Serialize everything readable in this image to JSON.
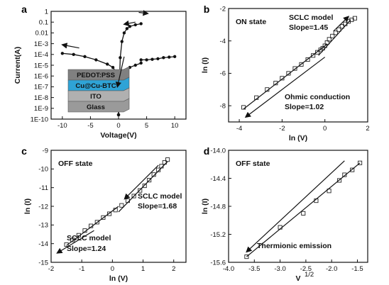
{
  "chart_data": [
    {
      "panel": "a",
      "type": "line",
      "xlabel": "Voltage(V)",
      "ylabel": "Current(A)",
      "xlim": [
        -12,
        12
      ],
      "ylim_log10": [
        -10,
        0
      ],
      "x_ticks": [
        "-10",
        "-5",
        "0",
        "5",
        "10"
      ],
      "y_ticks": [
        "1E-10",
        "1E-9",
        "1E-8",
        "1E-7",
        "1E-6",
        "1E-5",
        "1E-4",
        "1E-3",
        "0.01",
        "0.1",
        "1"
      ],
      "scale_y": "log",
      "series": [
        {
          "x": [
            -10,
            -8,
            -6,
            -4,
            -2,
            -1,
            -0.5,
            -0.2,
            0
          ],
          "y_log10": [
            -3.9,
            -4.0,
            -4.2,
            -4.5,
            -4.9,
            -5.2,
            -5.6,
            -6.2,
            -9.6
          ]
        },
        {
          "x": [
            0,
            0.3,
            0.6,
            1,
            1.5,
            2,
            3,
            4
          ],
          "y_log10": [
            -9.6,
            -4.3,
            -2.8,
            -2.0,
            -1.6,
            -1.4,
            -1.25,
            -1.15
          ]
        },
        {
          "x": [
            4,
            5,
            6,
            7,
            8,
            9,
            10
          ],
          "y_log10": [
            -4.5,
            -4.5,
            -4.45,
            -4.4,
            -4.3,
            -4.25,
            -4.2
          ]
        },
        {
          "x": [
            0,
            0.5,
            1,
            2,
            3,
            4
          ],
          "y_log10": [
            -9.6,
            -5.8,
            -5.5,
            -5.2,
            -5.0,
            -4.8
          ]
        }
      ],
      "arrows_data": [
        {
          "from": [
            -7,
            -3.4
          ],
          "to": [
            -10,
            -3.1
          ]
        },
        {
          "from": [
            3.0,
            -1.0
          ],
          "to": [
            1.0,
            -1.2
          ]
        },
        {
          "from": [
            3.6,
            -0.1
          ],
          "to": [
            5.2,
            -0.2
          ]
        },
        {
          "from": [
            1.0,
            -4.2
          ],
          "to": [
            -0.2,
            -7.0
          ]
        }
      ],
      "inset": {
        "layers": [
          "PEDOT:PSS",
          "Cu@Cu-BTC",
          "ITO",
          "Glass"
        ],
        "colors": [
          "#808080",
          "#2fa3d6",
          "#b0b0b0",
          "#9a9a9a"
        ]
      }
    },
    {
      "panel": "b",
      "type": "scatter",
      "xlabel": "ln (V)",
      "ylabel": "ln (I)",
      "xlim": [
        -4.5,
        2.0
      ],
      "ylim": [
        -9,
        -2
      ],
      "x_ticks": [
        "-4",
        "-2",
        "0",
        "2"
      ],
      "y_ticks": [
        "-8",
        "-6",
        "-4",
        "-2"
      ],
      "state": "ON state",
      "annotations": [
        "SCLC model",
        "Slope=1.45",
        "Ohmic conduction",
        "Slope=1.02"
      ],
      "x": [
        -3.8,
        -3.2,
        -2.7,
        -2.3,
        -2.0,
        -1.7,
        -1.4,
        -1.1,
        -0.8,
        -0.55,
        -0.35,
        -0.2,
        -0.1,
        0.0,
        0.1,
        0.2,
        0.35,
        0.5,
        0.65,
        0.8,
        0.95,
        1.1,
        1.25,
        1.4
      ],
      "y": [
        -8.1,
        -7.5,
        -7.0,
        -6.6,
        -6.3,
        -6.0,
        -5.7,
        -5.45,
        -5.15,
        -4.9,
        -4.7,
        -4.55,
        -4.45,
        -4.3,
        -4.1,
        -3.9,
        -3.7,
        -3.5,
        -3.3,
        -3.1,
        -2.95,
        -2.8,
        -2.7,
        -2.6
      ],
      "fit_lines": [
        {
          "x": [
            -3.8,
            0.1
          ],
          "y": [
            -8.2,
            -4.2
          ]
        },
        {
          "x": [
            -0.3,
            1.2
          ],
          "y": [
            -4.9,
            -2.7
          ]
        }
      ],
      "arrows_data": [
        {
          "from": [
            0.4,
            -3.4
          ],
          "to": [
            1.1,
            -2.5
          ]
        },
        {
          "from": [
            0.0,
            -5.0
          ],
          "to": [
            -3.7,
            -8.7
          ]
        }
      ]
    },
    {
      "panel": "c",
      "type": "scatter",
      "xlabel": "ln (V)",
      "ylabel": "ln (I)",
      "xlim": [
        -2,
        2.4
      ],
      "ylim": [
        -15,
        -9
      ],
      "x_ticks": [
        "-2",
        "-1",
        "0",
        "1",
        "2"
      ],
      "y_ticks": [
        "-15",
        "-14",
        "-13",
        "-12",
        "-11",
        "-10",
        "-9"
      ],
      "state": "OFF state",
      "annotations": [
        "SCLC model",
        "Slope=1.68",
        "SCLC model",
        "Slope=1.24"
      ],
      "x": [
        -1.5,
        -1.3,
        -1.1,
        -0.9,
        -0.7,
        -0.5,
        -0.3,
        -0.1,
        0.1,
        0.3,
        0.5,
        0.7,
        0.9,
        1.05,
        1.2,
        1.35,
        1.5,
        1.6,
        1.7,
        1.8
      ],
      "y": [
        -14.05,
        -13.8,
        -13.55,
        -13.3,
        -13.05,
        -12.85,
        -12.6,
        -12.4,
        -12.2,
        -11.95,
        -11.7,
        -11.45,
        -11.15,
        -10.9,
        -10.6,
        -10.3,
        -10.05,
        -9.85,
        -9.65,
        -9.5
      ],
      "fit_lines": [
        {
          "x": [
            -1.5,
            0.2
          ],
          "y": [
            -14.1,
            -12.0
          ]
        },
        {
          "x": [
            0.2,
            1.8
          ],
          "y": [
            -12.3,
            -9.6
          ]
        }
      ],
      "arrows_data": [
        {
          "from": [
            1.5,
            -9.8
          ],
          "to": [
            0.4,
            -11.6
          ]
        },
        {
          "from": [
            -0.6,
            -13.3
          ],
          "to": [
            -1.8,
            -14.5
          ]
        }
      ]
    },
    {
      "panel": "d",
      "type": "scatter",
      "xlabel": "V",
      "xlabel_sup": "1/2",
      "ylabel": "ln (I)",
      "xlim": [
        -4.0,
        -1.3
      ],
      "ylim": [
        -15.6,
        -14.0
      ],
      "x_ticks": [
        "-4.0",
        "-3.5",
        "-3.0",
        "-2.5",
        "-2.0",
        "-1.5"
      ],
      "y_ticks": [
        "-15.6",
        "-15.2",
        "-14.8",
        "-14.4",
        "-14.0"
      ],
      "state": "OFF state",
      "annotations": [
        "Thermionic emission"
      ],
      "x": [
        -3.65,
        -3.0,
        -2.55,
        -2.3,
        -2.05,
        -1.85,
        -1.75,
        -1.6,
        -1.45
      ],
      "y": [
        -15.52,
        -15.1,
        -14.9,
        -14.72,
        -14.58,
        -14.43,
        -14.35,
        -14.28,
        -14.18
      ],
      "fit_lines": [
        {
          "x": [
            -3.65,
            -1.45
          ],
          "y": [
            -15.52,
            -14.18
          ]
        }
      ],
      "arrows_data": [
        {
          "from": [
            -1.75,
            -14.15
          ],
          "to": [
            -3.65,
            -15.45
          ]
        }
      ]
    }
  ]
}
